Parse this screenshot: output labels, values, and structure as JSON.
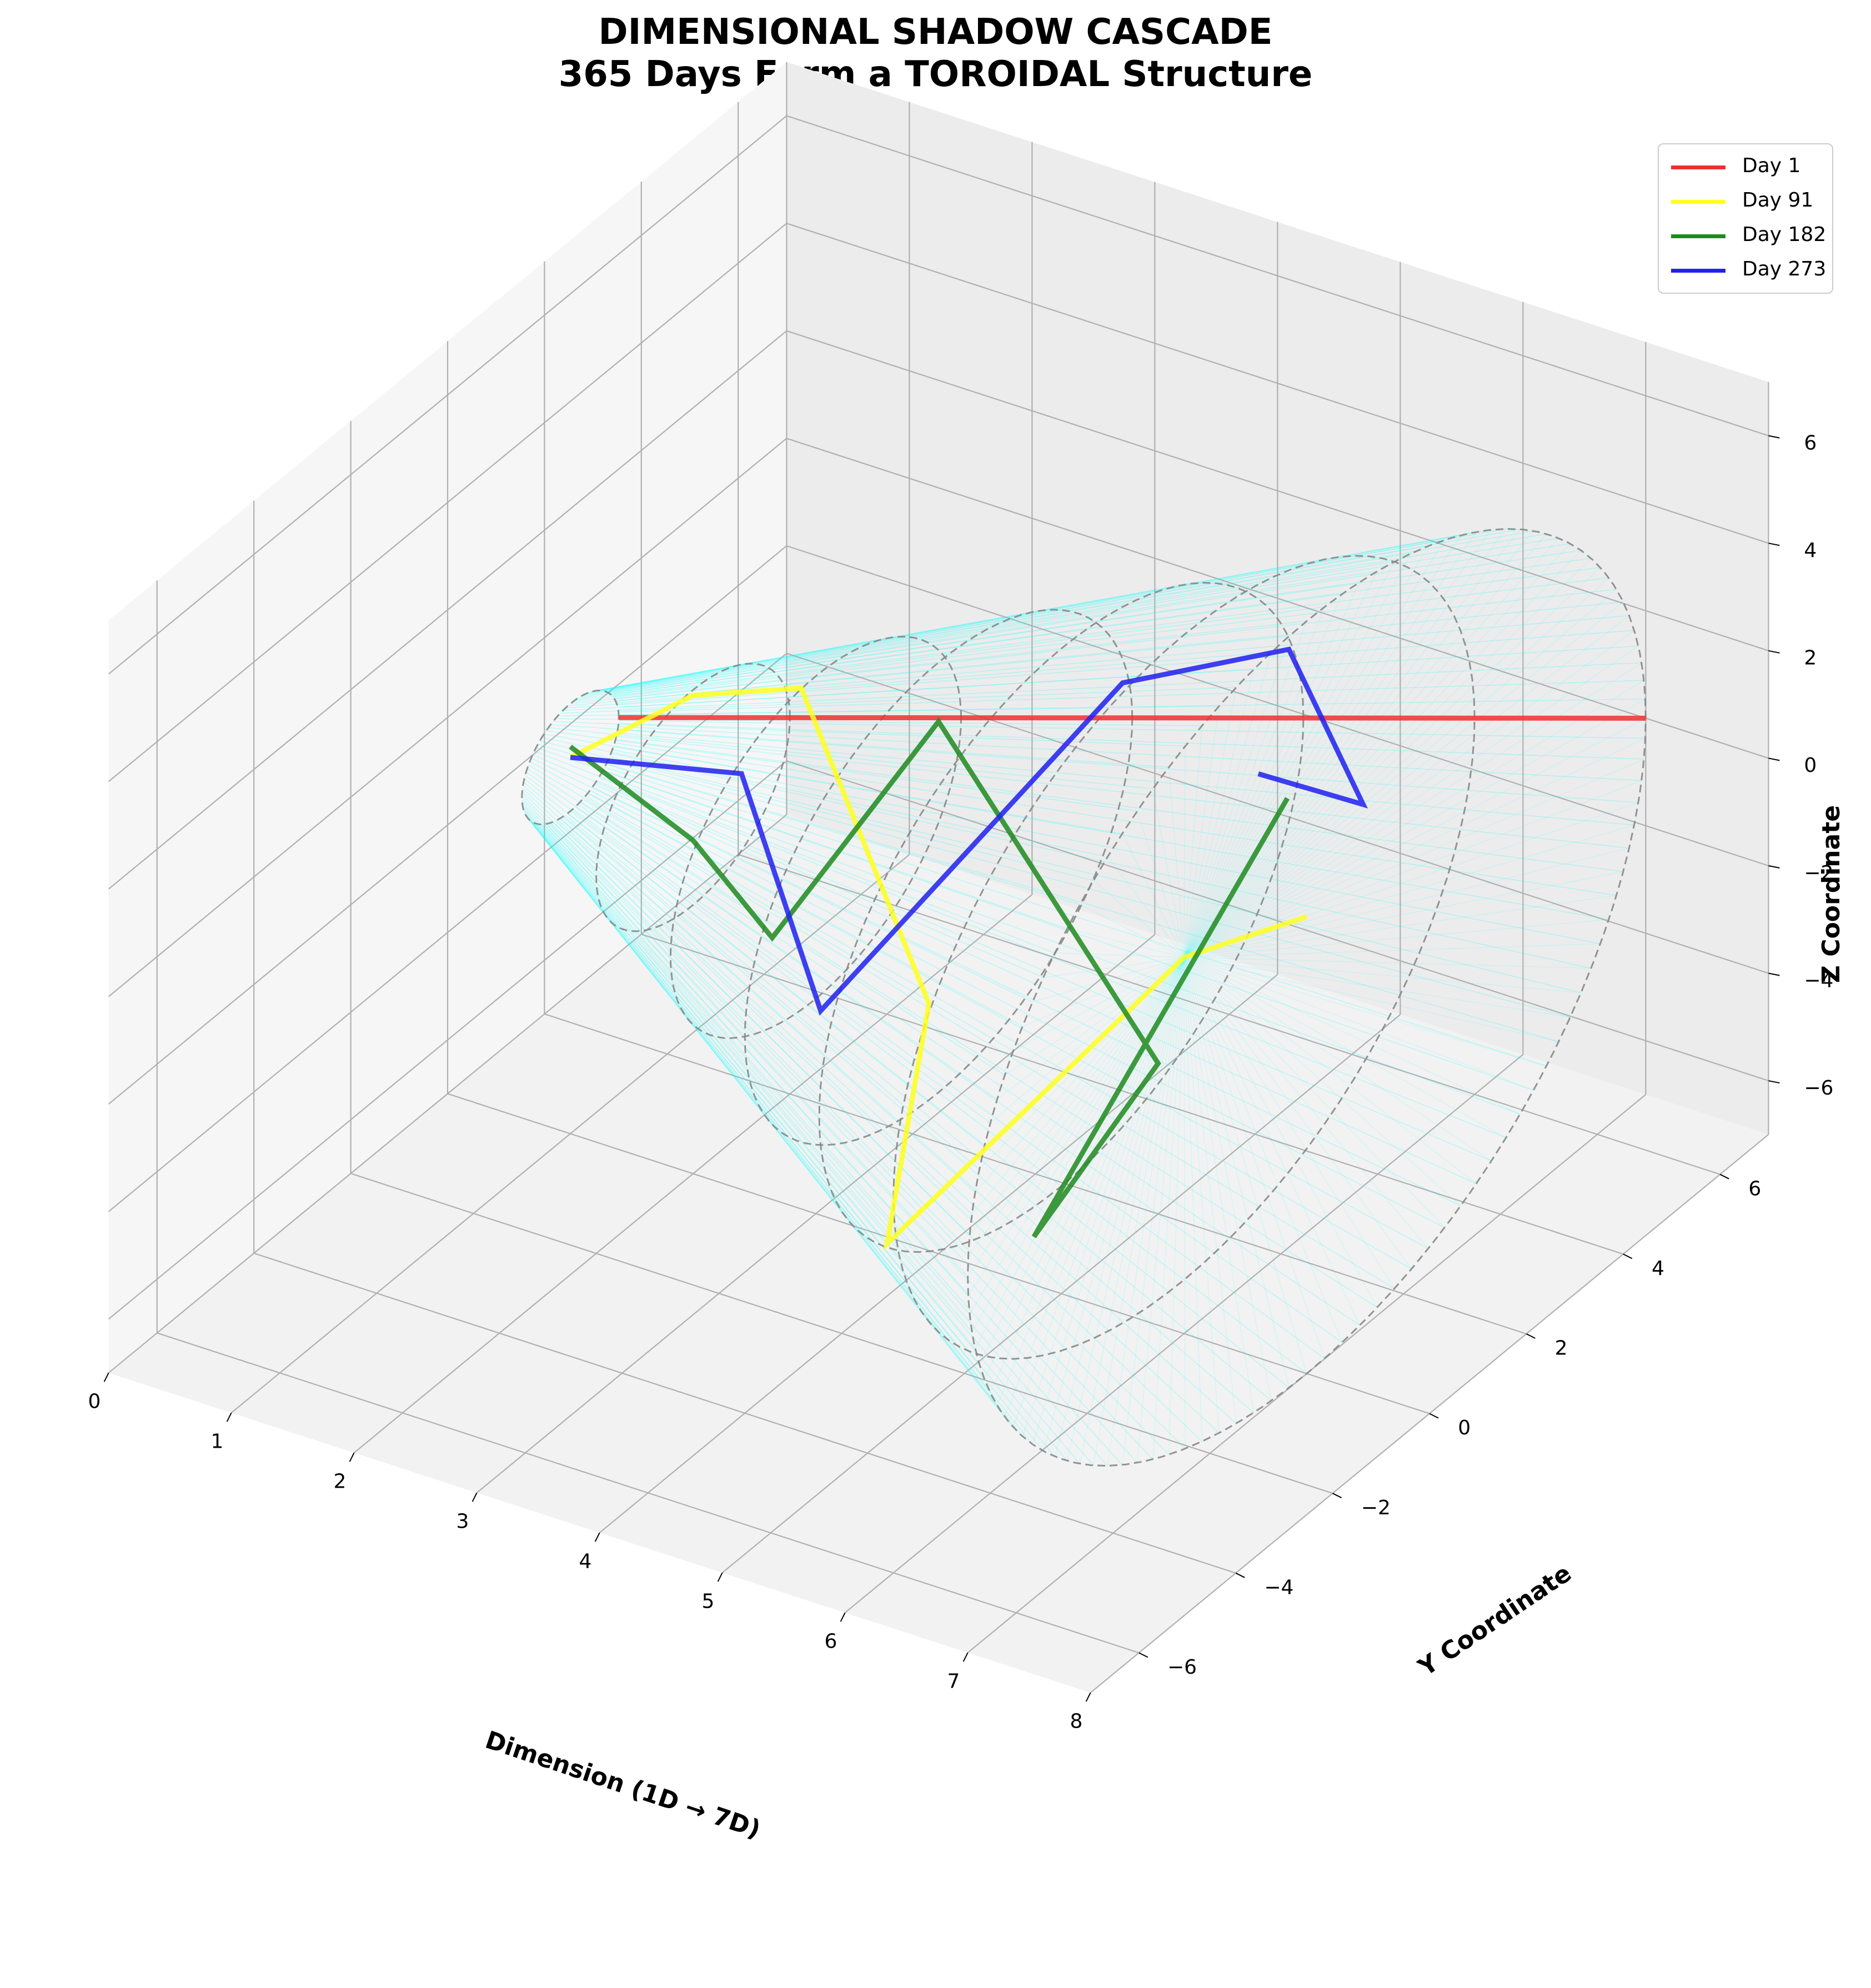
{
  "title_line1": "DIMENSIONAL SHADOW CASCADE",
  "title_line2": "365 Days Form a TOROIDAL Structure",
  "colors": {
    "day1": "#f03030",
    "day91": "#ffff20",
    "day182": "#1f8a1f",
    "day273": "#2020f0",
    "fan": "#00ffff",
    "ellipse": "#888888",
    "pane": "#f0f0f0",
    "grid": "#b0b0b0"
  },
  "chart_data": {
    "type": "line3d",
    "xlabel": "Dimension (1D → 7D)",
    "ylabel": "Y Coordinate",
    "zlabel": "Z Coordinate",
    "xlim": [
      0,
      8
    ],
    "ylim": [
      -7,
      7
    ],
    "zlim": [
      -7,
      7
    ],
    "xticks": [
      "0",
      "1",
      "2",
      "3",
      "4",
      "5",
      "6",
      "7",
      "8"
    ],
    "yticks": [
      "−6",
      "−4",
      "−2",
      "0",
      "2",
      "4",
      "6"
    ],
    "zticks": [
      "−6",
      "−4",
      "−2",
      "0",
      "2",
      "4",
      "6"
    ],
    "grid": true,
    "legend_position": "top-right",
    "rings": [
      {
        "x": 1,
        "r": 1
      },
      {
        "x": 2,
        "r": 2
      },
      {
        "x": 3,
        "r": 3
      },
      {
        "x": 4,
        "r": 4
      },
      {
        "x": 5,
        "r": 5
      },
      {
        "x": 6,
        "r": 6
      },
      {
        "x": 7,
        "r": 7
      }
    ],
    "series": [
      {
        "name": "Day 1",
        "color_key": "day1",
        "points": [
          [
            1,
            1.0,
            0.0
          ],
          [
            2,
            2.0,
            0.0
          ],
          [
            3,
            3.0,
            0.0
          ],
          [
            4,
            4.0,
            0.0
          ],
          [
            5,
            5.0,
            0.0
          ],
          [
            6,
            6.0,
            0.0
          ],
          [
            7,
            7.0,
            0.0
          ]
        ]
      },
      {
        "name": "Day 91",
        "color_key": "day91",
        "points": [
          [
            1,
            0.0,
            0.0
          ],
          [
            2,
            0.0,
            1.9
          ],
          [
            3,
            -0.3,
            3.0
          ],
          [
            4,
            -0.2,
            -2.2
          ],
          [
            5,
            -3.6,
            -3.4
          ],
          [
            6,
            0.0,
            0.0
          ],
          [
            7,
            0.0,
            1.5
          ]
        ]
      },
      {
        "name": "Day 182",
        "color_key": "day182",
        "points": [
          [
            1,
            -0.0,
            0.2
          ],
          [
            2,
            0.0,
            -0.8
          ],
          [
            3,
            -0.9,
            -1.2
          ],
          [
            4,
            0.0,
            2.9
          ],
          [
            5,
            2.0,
            -4.2
          ],
          [
            6,
            -3.1,
            -2.9
          ],
          [
            7,
            -0.4,
            4.0
          ]
        ]
      },
      {
        "name": "Day 273",
        "color_key": "day273",
        "points": [
          [
            1,
            -0.0,
            0.0
          ],
          [
            2,
            1.0,
            -0.3
          ],
          [
            3,
            0.1,
            -3.3
          ],
          [
            4,
            3.8,
            0.8
          ],
          [
            5,
            4.7,
            1.5
          ],
          [
            6,
            3.7,
            0.1
          ],
          [
            7,
            -1.0,
            4.9
          ]
        ]
      }
    ]
  },
  "legend": [
    {
      "label": "Day 1",
      "color_key": "day1"
    },
    {
      "label": "Day 91",
      "color_key": "day91"
    },
    {
      "label": "Day 182",
      "color_key": "day182"
    },
    {
      "label": "Day 273",
      "color_key": "day273"
    }
  ]
}
